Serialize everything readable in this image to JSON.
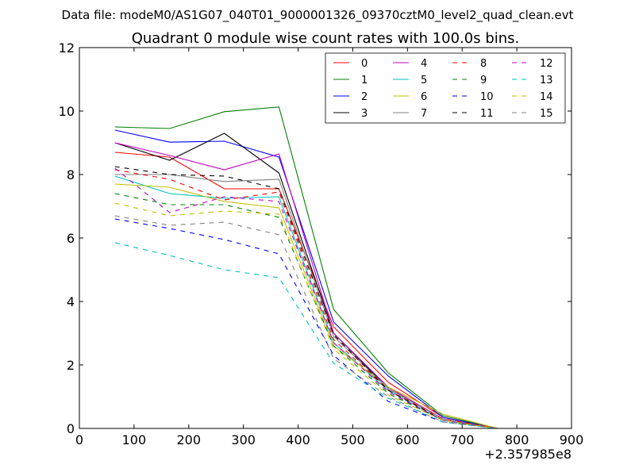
{
  "suptitle": "Data file: modeM0/AS1G07_040T01_9000001326_09370cztM0_level2_quad_clean.evt",
  "chart_data": {
    "type": "line",
    "title": "Quadrant 0 module wise count rates with 100.0s bins.",
    "xlabel": "",
    "ylabel": "",
    "x_offset_label": "+2.357985e8",
    "xlim": [
      0,
      900
    ],
    "ylim": [
      0,
      12
    ],
    "x_ticks": [
      0,
      100,
      200,
      300,
      400,
      500,
      600,
      700,
      800,
      900
    ],
    "y_ticks": [
      0,
      2,
      4,
      6,
      8,
      10,
      12
    ],
    "x": [
      65,
      165,
      265,
      365,
      465,
      565,
      665,
      765,
      865
    ],
    "grid": false,
    "legend_position": "top-right",
    "legend_columns": 4,
    "series": [
      {
        "name": "0",
        "color": "#ff0000",
        "dash": "solid",
        "values": [
          8.7,
          8.55,
          7.55,
          7.55,
          3.2,
          1.45,
          0.35,
          0.0,
          0.0
        ]
      },
      {
        "name": "1",
        "color": "#008000",
        "dash": "solid",
        "values": [
          9.5,
          9.45,
          9.98,
          10.13,
          3.75,
          1.75,
          0.4,
          0.0,
          0.0
        ]
      },
      {
        "name": "2",
        "color": "#0000ff",
        "dash": "solid",
        "values": [
          9.4,
          9.02,
          9.05,
          8.55,
          3.35,
          1.65,
          0.35,
          0.0,
          0.0
        ]
      },
      {
        "name": "3",
        "color": "#000000",
        "dash": "solid",
        "values": [
          9.0,
          8.45,
          9.3,
          8.05,
          3.0,
          1.25,
          0.3,
          0.0,
          0.0
        ]
      },
      {
        "name": "4",
        "color": "#bf00bf",
        "dash": "solid",
        "values": [
          9.0,
          8.6,
          8.15,
          8.65,
          3.0,
          1.3,
          0.3,
          0.0,
          0.0
        ]
      },
      {
        "name": "5",
        "color": "#00bfbf",
        "dash": "solid",
        "values": [
          7.95,
          7.4,
          7.25,
          7.3,
          2.7,
          1.2,
          0.25,
          0.0,
          0.0
        ]
      },
      {
        "name": "6",
        "color": "#bfbf00",
        "dash": "solid",
        "values": [
          7.7,
          7.6,
          7.15,
          6.95,
          2.6,
          1.3,
          0.45,
          0.0,
          0.0
        ]
      },
      {
        "name": "7",
        "color": "#808080",
        "dash": "solid",
        "values": [
          8.0,
          8.0,
          7.78,
          7.85,
          2.9,
          1.25,
          0.3,
          0.0,
          0.0
        ]
      },
      {
        "name": "8",
        "color": "#ff0000",
        "dash": "dashed",
        "values": [
          8.15,
          7.85,
          7.2,
          7.45,
          2.8,
          1.2,
          0.3,
          0.0,
          0.0
        ]
      },
      {
        "name": "9",
        "color": "#008000",
        "dash": "dashed",
        "values": [
          7.4,
          7.05,
          7.05,
          6.65,
          2.6,
          1.1,
          0.25,
          0.0,
          0.0
        ]
      },
      {
        "name": "10",
        "color": "#0000ff",
        "dash": "dashed",
        "values": [
          6.6,
          6.3,
          5.95,
          5.5,
          2.3,
          0.85,
          0.2,
          0.0,
          0.0
        ]
      },
      {
        "name": "11",
        "color": "#000000",
        "dash": "dashed",
        "values": [
          8.25,
          8.0,
          7.95,
          7.55,
          2.95,
          1.2,
          0.25,
          0.0,
          0.0
        ]
      },
      {
        "name": "12",
        "color": "#bf00bf",
        "dash": "dashed",
        "values": [
          8.2,
          6.8,
          7.3,
          7.15,
          2.7,
          1.15,
          0.25,
          0.0,
          0.0
        ]
      },
      {
        "name": "13",
        "color": "#00bfbf",
        "dash": "dashed",
        "values": [
          5.85,
          5.45,
          5.0,
          4.75,
          2.05,
          0.95,
          0.2,
          0.0,
          0.0
        ]
      },
      {
        "name": "14",
        "color": "#bfbf00",
        "dash": "dashed",
        "values": [
          7.1,
          6.7,
          6.85,
          6.75,
          2.5,
          1.05,
          0.25,
          0.0,
          0.0
        ]
      },
      {
        "name": "15",
        "color": "#808080",
        "dash": "dashed",
        "values": [
          6.7,
          6.4,
          6.5,
          6.1,
          2.2,
          1.0,
          0.2,
          0.0,
          0.0
        ]
      }
    ]
  }
}
